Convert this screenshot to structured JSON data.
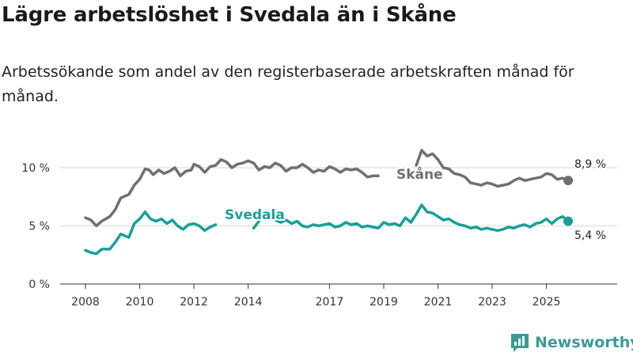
{
  "title": "Lägre arbetslöshet i Svedala än i Skåne",
  "subtitle": "Arbetssökande som andel av den registerbaserade arbetskraften månad för månad.",
  "brand": "Newsworthy",
  "colors": {
    "skane": "#6f6f73",
    "svedala": "#16a196",
    "grid": "#e2e2e2",
    "axis": "#333333",
    "brand": "#3d9a94"
  },
  "chart_data": {
    "type": "line",
    "title": "",
    "xlabel": "",
    "ylabel": "",
    "xlim": [
      2008,
      2026.7
    ],
    "ylim": [
      0,
      11.5
    ],
    "yticks": [
      {
        "value": 0,
        "label": "0 %"
      },
      {
        "value": 5,
        "label": "5 %"
      },
      {
        "value": 10,
        "label": "10 %"
      }
    ],
    "xticks": [
      {
        "value": 2008,
        "label": "2008"
      },
      {
        "value": 2010,
        "label": "2010"
      },
      {
        "value": 2012,
        "label": "2012"
      },
      {
        "value": 2014,
        "label": "2014"
      },
      {
        "value": 2017,
        "label": "2017"
      },
      {
        "value": 2019,
        "label": "2019"
      },
      {
        "value": 2021,
        "label": "2021"
      },
      {
        "value": 2023,
        "label": "2023"
      },
      {
        "value": 2025,
        "label": "2025"
      }
    ],
    "series": [
      {
        "name": "Skåne",
        "key": "skane",
        "end_label": "8,9 %",
        "segments": [
          [
            [
              2008,
              5.7
            ],
            [
              2008.2,
              5.5
            ],
            [
              2008.4,
              5.0
            ],
            [
              2008.6,
              5.4
            ],
            [
              2008.9,
              5.8
            ],
            [
              2009.1,
              6.4
            ],
            [
              2009.3,
              7.4
            ],
            [
              2009.6,
              7.7
            ],
            [
              2009.8,
              8.5
            ],
            [
              2010.0,
              9.0
            ],
            [
              2010.2,
              9.9
            ],
            [
              2010.35,
              9.8
            ],
            [
              2010.5,
              9.4
            ],
            [
              2010.7,
              9.8
            ],
            [
              2010.9,
              9.5
            ],
            [
              2011.1,
              9.7
            ],
            [
              2011.3,
              10.0
            ],
            [
              2011.5,
              9.3
            ],
            [
              2011.7,
              9.7
            ],
            [
              2011.9,
              9.8
            ],
            [
              2012.0,
              10.3
            ],
            [
              2012.2,
              10.1
            ],
            [
              2012.4,
              9.6
            ],
            [
              2012.6,
              10.1
            ],
            [
              2012.8,
              10.2
            ],
            [
              2013.0,
              10.7
            ],
            [
              2013.2,
              10.5
            ],
            [
              2013.4,
              10.0
            ],
            [
              2013.6,
              10.3
            ],
            [
              2013.8,
              10.4
            ],
            [
              2014.0,
              10.6
            ],
            [
              2014.2,
              10.4
            ],
            [
              2014.4,
              9.8
            ],
            [
              2014.6,
              10.1
            ],
            [
              2014.8,
              10.0
            ],
            [
              2015.0,
              10.4
            ],
            [
              2015.2,
              10.2
            ],
            [
              2015.4,
              9.7
            ],
            [
              2015.6,
              10.0
            ],
            [
              2015.8,
              10.0
            ],
            [
              2016.0,
              10.3
            ],
            [
              2016.2,
              10.0
            ],
            [
              2016.4,
              9.6
            ],
            [
              2016.6,
              9.8
            ],
            [
              2016.8,
              9.7
            ],
            [
              2017.0,
              10.1
            ],
            [
              2017.2,
              9.9
            ],
            [
              2017.4,
              9.6
            ],
            [
              2017.6,
              9.9
            ],
            [
              2017.8,
              9.8
            ],
            [
              2018.0,
              9.9
            ],
            [
              2018.2,
              9.6
            ],
            [
              2018.4,
              9.2
            ],
            [
              2018.6,
              9.3
            ],
            [
              2018.8,
              9.3
            ]
          ],
          [
            [
              2020.2,
              10.2
            ],
            [
              2020.4,
              11.5
            ],
            [
              2020.6,
              11.0
            ],
            [
              2020.8,
              11.2
            ],
            [
              2021.0,
              10.7
            ],
            [
              2021.2,
              10.0
            ],
            [
              2021.4,
              9.9
            ],
            [
              2021.6,
              9.5
            ],
            [
              2021.8,
              9.4
            ],
            [
              2022.0,
              9.2
            ],
            [
              2022.2,
              8.7
            ],
            [
              2022.4,
              8.6
            ],
            [
              2022.6,
              8.5
            ],
            [
              2022.8,
              8.7
            ],
            [
              2023.0,
              8.6
            ],
            [
              2023.2,
              8.4
            ],
            [
              2023.4,
              8.5
            ],
            [
              2023.6,
              8.6
            ],
            [
              2023.8,
              8.9
            ],
            [
              2024.0,
              9.1
            ],
            [
              2024.2,
              8.9
            ],
            [
              2024.4,
              9.0
            ],
            [
              2024.6,
              9.1
            ],
            [
              2024.8,
              9.2
            ],
            [
              2025.0,
              9.5
            ],
            [
              2025.2,
              9.4
            ],
            [
              2025.4,
              9.0
            ],
            [
              2025.6,
              9.1
            ],
            [
              2025.8,
              8.9
            ]
          ]
        ]
      },
      {
        "name": "Svedala",
        "key": "svedala",
        "end_label": "5,4 %",
        "segments": [
          [
            [
              2008,
              2.9
            ],
            [
              2008.2,
              2.7
            ],
            [
              2008.4,
              2.6
            ],
            [
              2008.6,
              3.0
            ],
            [
              2008.9,
              3.0
            ],
            [
              2009.1,
              3.6
            ],
            [
              2009.3,
              4.3
            ],
            [
              2009.6,
              4.0
            ],
            [
              2009.8,
              5.2
            ],
            [
              2010.0,
              5.6
            ],
            [
              2010.2,
              6.2
            ],
            [
              2010.4,
              5.6
            ],
            [
              2010.6,
              5.4
            ],
            [
              2010.8,
              5.6
            ],
            [
              2011.0,
              5.2
            ],
            [
              2011.2,
              5.5
            ],
            [
              2011.4,
              5.0
            ],
            [
              2011.6,
              4.7
            ],
            [
              2011.8,
              5.1
            ],
            [
              2012.0,
              5.2
            ],
            [
              2012.2,
              5.0
            ],
            [
              2012.4,
              4.6
            ],
            [
              2012.6,
              4.9
            ],
            [
              2012.8,
              5.1
            ]
          ],
          [
            [
              2014.2,
              4.8
            ],
            [
              2014.4,
              5.4
            ]
          ],
          [
            [
              2015.0,
              5.5
            ],
            [
              2015.2,
              5.3
            ],
            [
              2015.4,
              5.5
            ],
            [
              2015.6,
              5.2
            ],
            [
              2015.8,
              5.4
            ],
            [
              2016.0,
              5.0
            ],
            [
              2016.2,
              4.9
            ],
            [
              2016.4,
              5.1
            ],
            [
              2016.6,
              5.0
            ],
            [
              2016.8,
              5.1
            ],
            [
              2017.0,
              5.2
            ],
            [
              2017.2,
              4.9
            ],
            [
              2017.4,
              5.0
            ],
            [
              2017.6,
              5.3
            ],
            [
              2017.8,
              5.1
            ],
            [
              2018.0,
              5.2
            ],
            [
              2018.2,
              4.9
            ],
            [
              2018.4,
              5.0
            ],
            [
              2018.6,
              4.9
            ],
            [
              2018.8,
              4.8
            ],
            [
              2019.0,
              5.3
            ],
            [
              2019.2,
              5.1
            ],
            [
              2019.4,
              5.2
            ],
            [
              2019.6,
              5.0
            ],
            [
              2019.8,
              5.7
            ],
            [
              2020.0,
              5.3
            ],
            [
              2020.2,
              6.0
            ],
            [
              2020.4,
              6.8
            ],
            [
              2020.6,
              6.2
            ],
            [
              2020.8,
              6.1
            ],
            [
              2021.0,
              5.8
            ],
            [
              2021.2,
              5.5
            ],
            [
              2021.4,
              5.6
            ],
            [
              2021.6,
              5.3
            ],
            [
              2021.8,
              5.1
            ],
            [
              2022.0,
              5.0
            ],
            [
              2022.2,
              4.8
            ],
            [
              2022.4,
              4.9
            ],
            [
              2022.6,
              4.7
            ],
            [
              2022.8,
              4.8
            ],
            [
              2023.0,
              4.7
            ],
            [
              2023.2,
              4.6
            ],
            [
              2023.4,
              4.7
            ],
            [
              2023.6,
              4.9
            ],
            [
              2023.8,
              4.8
            ],
            [
              2024.0,
              5.0
            ],
            [
              2024.2,
              5.1
            ],
            [
              2024.4,
              4.9
            ],
            [
              2024.6,
              5.2
            ],
            [
              2024.8,
              5.3
            ],
            [
              2025.0,
              5.6
            ],
            [
              2025.2,
              5.2
            ],
            [
              2025.4,
              5.6
            ],
            [
              2025.6,
              5.8
            ],
            [
              2025.8,
              5.4
            ]
          ]
        ]
      }
    ]
  }
}
